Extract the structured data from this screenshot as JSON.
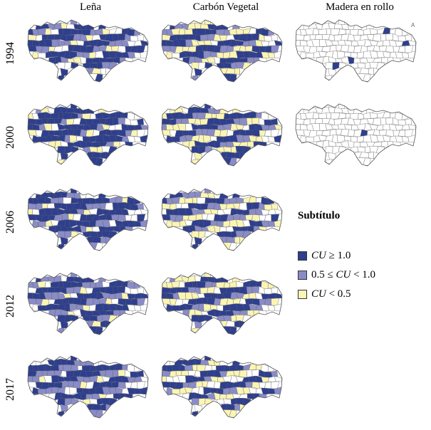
{
  "columns": [
    "Leña",
    "Carbón Vegetal",
    "Madera en rollo"
  ],
  "rows": [
    {
      "year": "1994",
      "maps": [
        {
          "dark": 0.5,
          "medium": 0.22,
          "light": 0.12,
          "white": 0.16
        },
        {
          "dark": 0.45,
          "medium": 0.2,
          "light": 0.3,
          "white": 0.05
        },
        {
          "dark": 0.03,
          "medium": 0,
          "light": 0,
          "white": 0.97
        }
      ]
    },
    {
      "year": "2000",
      "maps": [
        {
          "dark": 0.65,
          "medium": 0.12,
          "light": 0.12,
          "white": 0.11
        },
        {
          "dark": 0.4,
          "medium": 0.22,
          "light": 0.3,
          "white": 0.08
        },
        {
          "dark": 0.02,
          "medium": 0,
          "light": 0,
          "white": 0.98
        }
      ]
    },
    {
      "year": "2006",
      "maps": [
        {
          "dark": 0.6,
          "medium": 0.2,
          "light": 0.08,
          "white": 0.12
        },
        {
          "dark": 0.35,
          "medium": 0.25,
          "light": 0.25,
          "white": 0.15
        },
        null
      ]
    },
    {
      "year": "2012",
      "maps": [
        {
          "dark": 0.55,
          "medium": 0.28,
          "light": 0.07,
          "white": 0.1
        },
        {
          "dark": 0.42,
          "medium": 0.18,
          "light": 0.28,
          "white": 0.12
        },
        null
      ]
    },
    {
      "year": "2017",
      "maps": [
        {
          "dark": 0.5,
          "medium": 0.3,
          "light": 0.08,
          "white": 0.12
        },
        {
          "dark": 0.38,
          "medium": 0.12,
          "light": 0.25,
          "white": 0.25
        },
        null
      ]
    }
  ],
  "legend": {
    "title": "Subtítulo",
    "items": [
      {
        "prefix": "",
        "var": "CU",
        "suffix": " ≥ 1.0",
        "color": "#2E3F8F"
      },
      {
        "prefix": "0.5 ≤ ",
        "var": "CU",
        "suffix": " < 1.0",
        "color": "#8A8CC8"
      },
      {
        "prefix": "",
        "var": "CU",
        "suffix": " < 0.5",
        "color": "#FAF5B4"
      }
    ]
  },
  "colors": {
    "dark": "#2E3F8F",
    "medium": "#8A8CC8",
    "light": "#FAF5B4",
    "white": "#FFFFFF"
  },
  "corner_mark": "A"
}
